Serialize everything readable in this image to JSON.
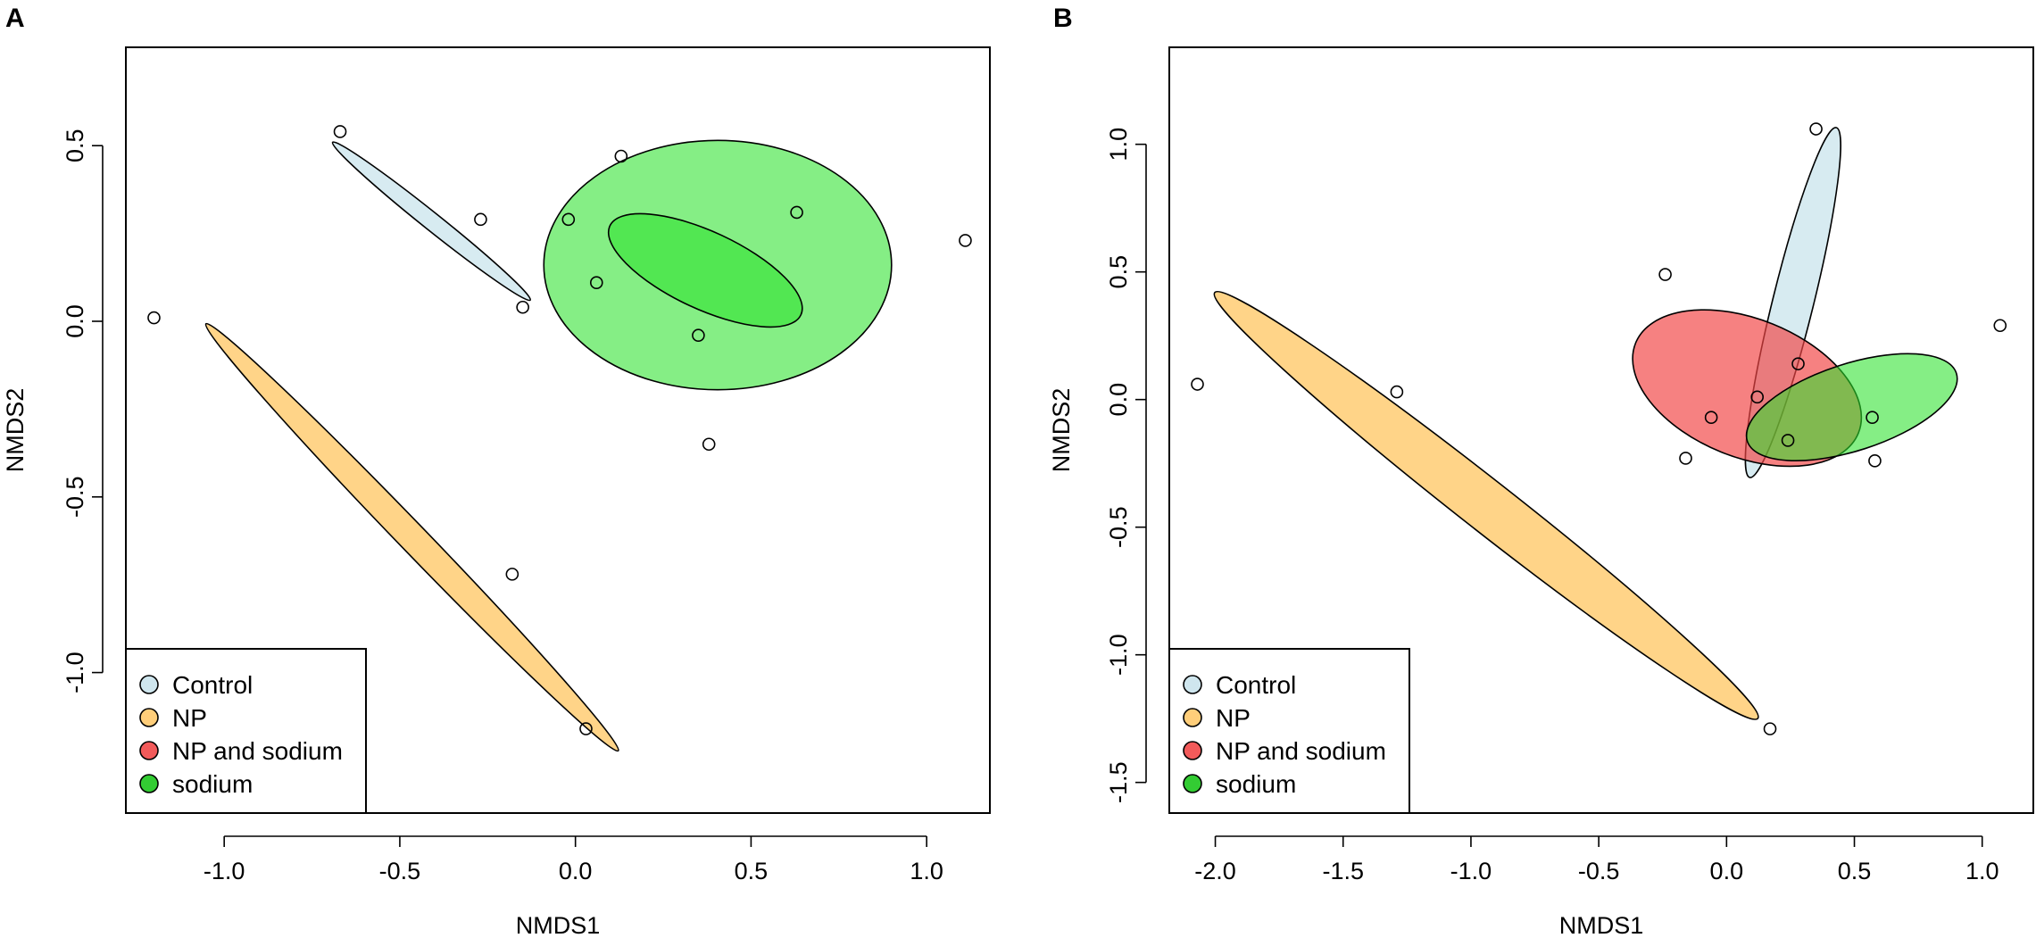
{
  "chart_data": [
    {
      "type": "scatter",
      "panel_label": "A",
      "xlabel": "NMDS1",
      "ylabel": "NMDS2",
      "xlim": [
        -1.28,
        1.18
      ],
      "ylim": [
        -1.4,
        0.78
      ],
      "xticks": [
        -1.0,
        -0.5,
        0.0,
        0.5,
        1.0
      ],
      "xtick_labels": [
        "-1.0",
        "-0.5",
        "0.0",
        "0.5",
        "1.0"
      ],
      "yticks": [
        -1.0,
        -0.5,
        0.0,
        0.5
      ],
      "ytick_labels": [
        "-1.0",
        "-0.5",
        "0.0",
        "0.5"
      ],
      "points": [
        {
          "x": -0.67,
          "y": 0.54
        },
        {
          "x": -0.27,
          "y": 0.29
        },
        {
          "x": -0.15,
          "y": 0.04
        },
        {
          "x": -1.2,
          "y": 0.01
        },
        {
          "x": -0.18,
          "y": -0.72
        },
        {
          "x": 0.03,
          "y": -1.16
        },
        {
          "x": -0.02,
          "y": 0.29
        },
        {
          "x": 0.13,
          "y": 0.47
        },
        {
          "x": 0.06,
          "y": 0.11
        },
        {
          "x": 0.35,
          "y": -0.04
        },
        {
          "x": 0.63,
          "y": 0.31
        },
        {
          "x": 0.38,
          "y": -0.35
        },
        {
          "x": 1.11,
          "y": 0.23
        }
      ],
      "ellipses": [
        {
          "group": "Control",
          "cx": -0.41,
          "cy": 0.285,
          "rx": 0.36,
          "ry": 0.025,
          "angle": -38.6
        },
        {
          "group": "NP",
          "cx": -0.465,
          "cy": -0.615,
          "rx": 0.845,
          "ry": 0.04,
          "angle": -46.0
        },
        {
          "group": "sodium",
          "cx": 0.405,
          "cy": 0.16,
          "rx": 0.495,
          "ry": 0.355,
          "angle": 0
        },
        {
          "group": "sodium",
          "cx": 0.37,
          "cy": 0.145,
          "rx": 0.3,
          "ry": 0.11,
          "angle": -25
        }
      ],
      "legend": {
        "placement": "bottom-left",
        "entries": [
          {
            "label": "Control",
            "color": "#cfe6ee"
          },
          {
            "label": "NP",
            "color": "#ffce7a"
          },
          {
            "label": "NP and sodium",
            "color": "#f25a5a"
          },
          {
            "label": "sodium",
            "color": "#33cc33"
          }
        ]
      }
    },
    {
      "type": "scatter",
      "panel_label": "B",
      "xlabel": "NMDS1",
      "ylabel": "NMDS2",
      "xlim": [
        -2.18,
        1.2
      ],
      "ylim": [
        -1.62,
        1.38
      ],
      "xticks": [
        -2.0,
        -1.5,
        -1.0,
        -0.5,
        0.0,
        0.5,
        1.0
      ],
      "xtick_labels": [
        "-2.0",
        "-1.5",
        "-1.0",
        "-0.5",
        "0.0",
        "0.5",
        "1.0"
      ],
      "yticks": [
        -1.5,
        -1.0,
        -0.5,
        0.0,
        0.5,
        1.0
      ],
      "ytick_labels": [
        "-1.5",
        "-1.0",
        "-0.5",
        "0.0",
        "0.5",
        "1.0"
      ],
      "points": [
        {
          "x": 0.35,
          "y": 1.06
        },
        {
          "x": -0.24,
          "y": 0.49
        },
        {
          "x": 1.07,
          "y": 0.29
        },
        {
          "x": 0.28,
          "y": 0.14
        },
        {
          "x": 0.12,
          "y": 0.01
        },
        {
          "x": -0.06,
          "y": -0.07
        },
        {
          "x": 0.24,
          "y": -0.16
        },
        {
          "x": 0.57,
          "y": -0.07
        },
        {
          "x": -0.16,
          "y": -0.23
        },
        {
          "x": 0.58,
          "y": -0.24
        },
        {
          "x": -2.07,
          "y": 0.06
        },
        {
          "x": -1.29,
          "y": 0.03
        },
        {
          "x": 0.17,
          "y": -1.29
        }
      ],
      "ellipses": [
        {
          "group": "NP",
          "cx": -0.94,
          "cy": -0.415,
          "rx": 1.35,
          "ry": 0.1,
          "angle": -38.1
        },
        {
          "group": "Control",
          "cx": 0.26,
          "cy": 0.38,
          "rx": 0.705,
          "ry": 0.08,
          "angle": 76.1
        },
        {
          "group": "NP and sodium",
          "cx": 0.08,
          "cy": 0.045,
          "rx": 0.47,
          "ry": 0.27,
          "angle": -22
        },
        {
          "group": "sodium",
          "cx": 0.49,
          "cy": -0.03,
          "rx": 0.43,
          "ry": 0.17,
          "angle": 18
        }
      ],
      "legend": {
        "placement": "bottom-left",
        "entries": [
          {
            "label": "Control",
            "color": "#cfe6ee"
          },
          {
            "label": "NP",
            "color": "#ffce7a"
          },
          {
            "label": "NP and sodium",
            "color": "#f25a5a"
          },
          {
            "label": "sodium",
            "color": "#33cc33"
          }
        ]
      }
    }
  ],
  "group_colors": {
    "Control": "#cfe6ee",
    "NP": "#ffce7a",
    "NP and sodium": "#f25a5a",
    "sodium": "#33cc33"
  },
  "group_fills": {
    "Control": "rgba(205,230,238,0.8)",
    "NP": "rgba(255,204,115,0.85)",
    "NP and sodium": "rgba(242,70,70,0.68)",
    "sodium": "rgba(45,225,45,0.58)"
  }
}
